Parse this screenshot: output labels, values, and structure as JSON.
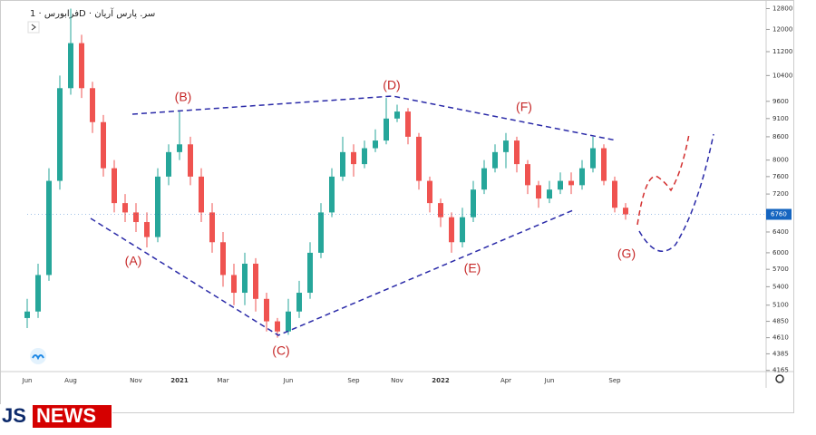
{
  "chart_data": {
    "type": "candlestick",
    "title": "فرابورس · 1D · سر. پارس آریان",
    "log_scale": true,
    "ylim": [
      4150,
      13000
    ],
    "yticks": [
      4165,
      4385,
      4610,
      4850,
      5100,
      5400,
      5700,
      6000,
      6400,
      7200,
      7600,
      8000,
      8600,
      9100,
      9600,
      10400,
      11200,
      12000,
      12800
    ],
    "last_price": 6760,
    "last_price_color": "#1565c0",
    "up_color": "#26a69a",
    "down_color": "#ef5350",
    "categories": [
      "Jun",
      null,
      null,
      null,
      "Aug",
      null,
      null,
      null,
      null,
      null,
      "Nov",
      null,
      null,
      null,
      "2021",
      null,
      null,
      null,
      "Mar",
      null,
      null,
      null,
      null,
      null,
      "Jun",
      null,
      null,
      null,
      null,
      null,
      "Sep",
      null,
      null,
      null,
      "Nov",
      null,
      null,
      null,
      "2022",
      null,
      null,
      null,
      null,
      null,
      "Apr",
      null,
      null,
      null,
      "Jun",
      null,
      null,
      null,
      null,
      null,
      "Sep",
      null
    ],
    "open": [
      4900,
      5000,
      5600,
      7500,
      10000,
      11500,
      10000,
      9000,
      7800,
      7000,
      6800,
      6600,
      6300,
      7600,
      8200,
      8400,
      7600,
      6800,
      6200,
      5600,
      5300,
      5800,
      5200,
      4850,
      4700,
      5000,
      5300,
      6000,
      6800,
      7600,
      8200,
      7900,
      8300,
      8500,
      9100,
      9300,
      8600,
      7500,
      7000,
      6700,
      6200,
      6700,
      7300,
      7800,
      8200,
      8500,
      7900,
      7400,
      7100,
      7300,
      7500,
      7400,
      7800,
      8300,
      7500,
      6900
    ],
    "high": [
      5200,
      5800,
      7800,
      10400,
      12800,
      11800,
      10200,
      9200,
      8000,
      7200,
      7000,
      6800,
      7800,
      8400,
      9300,
      8600,
      7800,
      7000,
      6400,
      5800,
      6000,
      5900,
      5300,
      4900,
      5200,
      5500,
      6200,
      7000,
      7800,
      8600,
      8400,
      8500,
      8800,
      9700,
      9500,
      9400,
      8700,
      7600,
      7100,
      6800,
      6900,
      7500,
      8000,
      8400,
      8700,
      8600,
      8000,
      7500,
      7500,
      7700,
      7700,
      8000,
      8600,
      8400,
      7600,
      7000
    ],
    "low": [
      4750,
      4900,
      5500,
      7300,
      9800,
      9700,
      8700,
      7600,
      6800,
      6600,
      6400,
      6100,
      6200,
      7400,
      8000,
      7400,
      6600,
      6000,
      5400,
      5100,
      5100,
      5000,
      4700,
      4610,
      4650,
      4900,
      5200,
      5900,
      6700,
      7500,
      7600,
      7800,
      8200,
      8400,
      9000,
      8400,
      7300,
      6800,
      6500,
      6000,
      6100,
      6600,
      7200,
      7700,
      7800,
      7700,
      7200,
      6900,
      7000,
      7200,
      7200,
      7300,
      7700,
      7400,
      6800,
      6650
    ],
    "close": [
      5000,
      5600,
      7500,
      10000,
      11500,
      10000,
      9000,
      7800,
      7000,
      6800,
      6600,
      6300,
      7600,
      8200,
      8400,
      7600,
      6800,
      6200,
      5600,
      5300,
      5800,
      5200,
      4850,
      4700,
      5000,
      5300,
      6000,
      6800,
      7600,
      8200,
      7900,
      8300,
      8500,
      9100,
      9300,
      8600,
      7500,
      7000,
      6700,
      6200,
      6700,
      7300,
      7800,
      8200,
      8500,
      7900,
      7400,
      7100,
      7300,
      7500,
      7400,
      7800,
      8300,
      7500,
      6900,
      6760
    ],
    "annotations": [
      "(A)",
      "(B)",
      "(C)",
      "(D)",
      "(E)",
      "(F)",
      "(G)"
    ]
  },
  "watermark": {
    "part1": "JS",
    "part2": "NEWS"
  }
}
